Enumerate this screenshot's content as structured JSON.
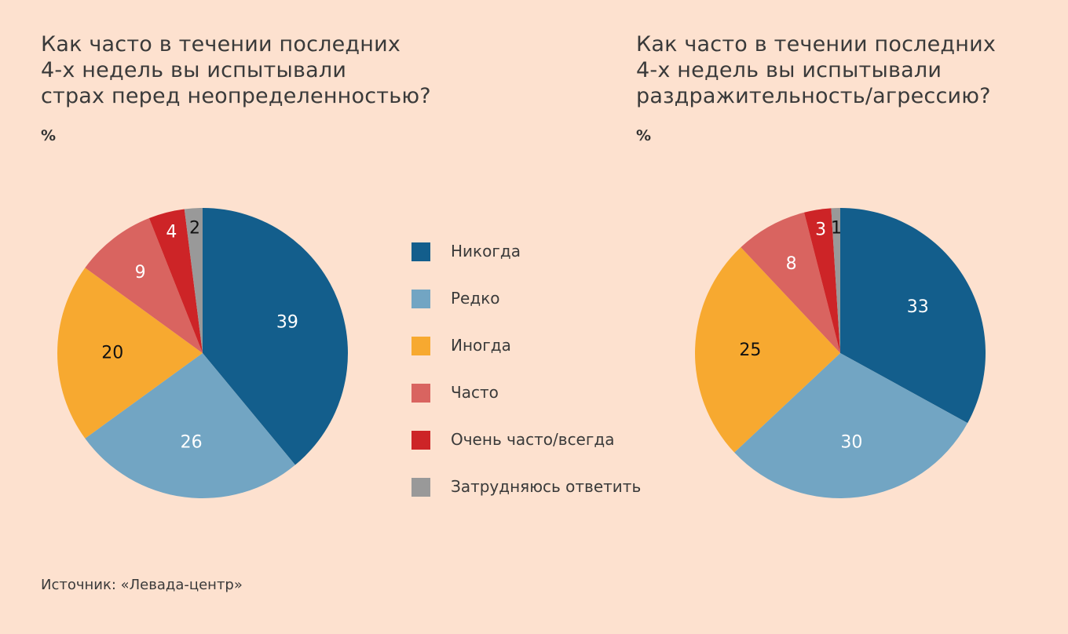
{
  "chart_data": [
    {
      "type": "pie",
      "title": "Как часто в течении последних\n4-х недель вы испытывали\nстрах перед неопределенностью?",
      "unit": "%",
      "categories": [
        "Никогда",
        "Редко",
        "Иногда",
        "Часто",
        "Очень часто/всегда",
        "Затрудняюсь ответить"
      ],
      "values": [
        39,
        26,
        20,
        9,
        4,
        2
      ],
      "colors": [
        "#135e8c",
        "#72a5c3",
        "#f7a930",
        "#d96460",
        "#cd2427",
        "#999999"
      ],
      "label_colors": [
        "#ffffff",
        "#ffffff",
        "#111111",
        "#ffffff",
        "#ffffff",
        "#111111"
      ]
    },
    {
      "type": "pie",
      "title": "Как часто в течении последних\n4-х недель вы испытывали\nраздражительность/агрессию?",
      "unit": "%",
      "categories": [
        "Никогда",
        "Редко",
        "Иногда",
        "Часто",
        "Очень часто/всегда",
        "Затрудняюсь ответить"
      ],
      "values": [
        33,
        30,
        25,
        8,
        3,
        1
      ],
      "colors": [
        "#135e8c",
        "#72a5c3",
        "#f7a930",
        "#d96460",
        "#cd2427",
        "#999999"
      ],
      "label_colors": [
        "#ffffff",
        "#ffffff",
        "#111111",
        "#ffffff",
        "#ffffff",
        "#111111"
      ]
    }
  ],
  "legend": {
    "items": [
      {
        "label": "Никогда",
        "color": "#135e8c"
      },
      {
        "label": "Редко",
        "color": "#72a5c3"
      },
      {
        "label": "Иногда",
        "color": "#f7a930"
      },
      {
        "label": "Часто",
        "color": "#d96460"
      },
      {
        "label": "Очень часто/всегда",
        "color": "#cd2427"
      },
      {
        "label": "Затрудняюсь ответить",
        "color": "#999999"
      }
    ]
  },
  "source": "Источник: «Левада-центр»",
  "colors": {
    "background": "#fde1cf"
  }
}
